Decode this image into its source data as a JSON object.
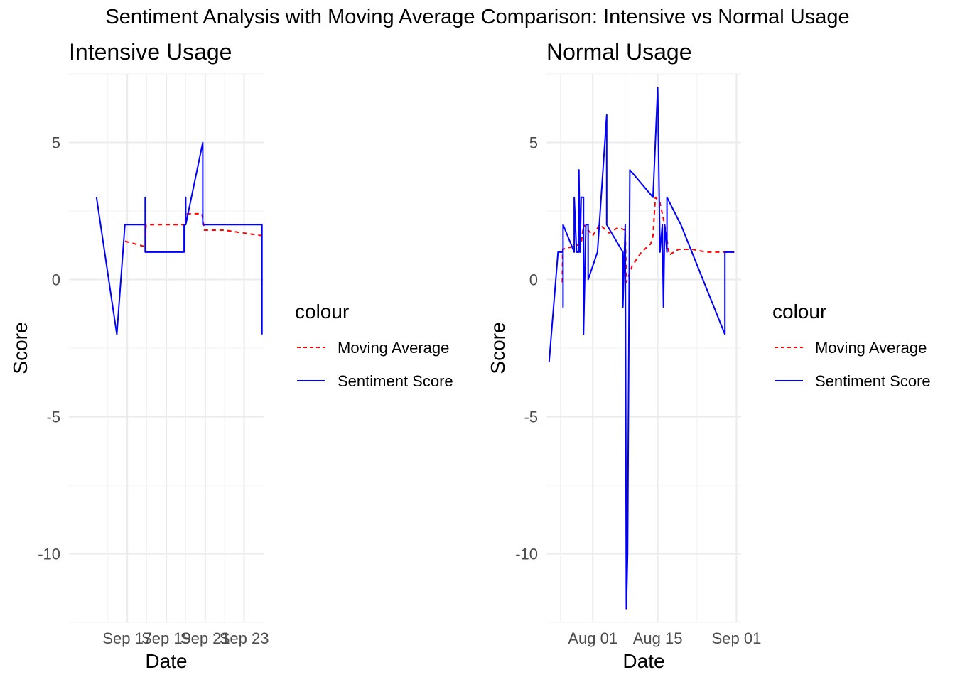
{
  "figure": {
    "title": "Sentiment Analysis with Moving Average Comparison: Intensive vs Normal Usage"
  },
  "chart_data": [
    {
      "type": "line",
      "title": "Intensive Usage",
      "xlabel": "Date",
      "ylabel": "Score",
      "x_type": "date",
      "xlim": [
        "2024-09-14",
        "2024-09-24"
      ],
      "ylim": [
        -12.5,
        7.5
      ],
      "x_ticks": [
        {
          "label": "Sep 17",
          "x": "2024-09-17"
        },
        {
          "label": "Sep 19",
          "x": "2024-09-19"
        },
        {
          "label": "Sep 21",
          "x": "2024-09-21"
        },
        {
          "label": "Sep 23",
          "x": "2024-09-23"
        }
      ],
      "y_ticks": [
        5,
        0,
        -5,
        -10
      ],
      "y_tick_labels": [
        "5",
        "0",
        "-5",
        "-10"
      ],
      "grid": true,
      "legend": {
        "title": "colour",
        "position": "right"
      },
      "series": [
        {
          "name": "Moving Average",
          "color": "#ff0000",
          "dash": "dashed",
          "points": [
            [
              "2024-09-16 21:00",
              1.4
            ],
            [
              "2024-09-17 22:00",
              1.2
            ],
            [
              "2024-09-17 23:00",
              2.0
            ],
            [
              "2024-09-19 23:00",
              2.0
            ],
            [
              "2024-09-20 00:00",
              2.4
            ],
            [
              "2024-09-20 20:00",
              2.4
            ],
            [
              "2024-09-20 23:00",
              1.8
            ],
            [
              "2024-09-21 23:00",
              1.8
            ],
            [
              "2024-09-23 22:00",
              1.6
            ]
          ]
        },
        {
          "name": "Sentiment Score",
          "color": "#0000ff",
          "dash": "solid",
          "points": [
            [
              "2024-09-15 10:00",
              3
            ],
            [
              "2024-09-16 11:00",
              -2
            ],
            [
              "2024-09-16 21:00",
              2
            ],
            [
              "2024-09-17 22:00",
              2
            ],
            [
              "2024-09-17 22:00",
              3
            ],
            [
              "2024-09-17 22:00",
              1
            ],
            [
              "2024-09-19 22:00",
              1
            ],
            [
              "2024-09-19 22:00",
              2
            ],
            [
              "2024-09-20 00:00",
              2
            ],
            [
              "2024-09-20 00:00",
              3
            ],
            [
              "2024-09-20 00:00",
              2
            ],
            [
              "2024-09-20 21:00",
              5
            ],
            [
              "2024-09-20 21:00",
              2
            ],
            [
              "2024-09-23 22:00",
              2
            ],
            [
              "2024-09-23 22:00",
              -2
            ]
          ]
        }
      ]
    },
    {
      "type": "line",
      "title": "Normal Usage",
      "xlabel": "Date",
      "ylabel": "Score",
      "x_type": "date",
      "xlim": [
        "2024-07-22",
        "2024-09-02"
      ],
      "ylim": [
        -12.5,
        7.5
      ],
      "x_ticks": [
        {
          "label": "Aug 01",
          "x": "2024-08-01"
        },
        {
          "label": "Aug 15",
          "x": "2024-08-15"
        },
        {
          "label": "Sep 01",
          "x": "2024-09-01"
        }
      ],
      "y_ticks": [
        5,
        0,
        -5,
        -10
      ],
      "y_tick_labels": [
        "5",
        "0",
        "-5",
        "-10"
      ],
      "grid": true,
      "legend": {
        "title": "colour",
        "position": "right"
      },
      "series": [
        {
          "name": "Moving Average",
          "color": "#ff0000",
          "dash": "dashed",
          "points": [
            [
              "2024-07-25 10:00",
              -0.1
            ],
            [
              "2024-07-25 12:00",
              1.1
            ],
            [
              "2024-07-27 12:00",
              1.2
            ],
            [
              "2024-07-29 12:00",
              1.3
            ],
            [
              "2024-07-30 00:00",
              2.0
            ],
            [
              "2024-07-30 12:00",
              1.9
            ],
            [
              "2024-08-01 00:00",
              1.6
            ],
            [
              "2024-08-02 12:00",
              2.0
            ],
            [
              "2024-08-04 12:00",
              1.7
            ],
            [
              "2024-08-06 12:00",
              1.9
            ],
            [
              "2024-08-08 00:00",
              1.8
            ],
            [
              "2024-08-08 06:00",
              -0.1
            ],
            [
              "2024-08-09 12:00",
              0.5
            ],
            [
              "2024-08-11 12:00",
              1.0
            ],
            [
              "2024-08-13 12:00",
              1.3
            ],
            [
              "2024-08-14 00:00",
              1.6
            ],
            [
              "2024-08-14 12:00",
              3.0
            ],
            [
              "2024-08-15 12:00",
              2.8
            ],
            [
              "2024-08-16 12:00",
              2.0
            ],
            [
              "2024-08-17 12:00",
              0.9
            ],
            [
              "2024-08-19 12:00",
              1.1
            ],
            [
              "2024-08-22 12:00",
              1.1
            ],
            [
              "2024-08-25 12:00",
              1.0
            ],
            [
              "2024-08-31 12:00",
              1.0
            ]
          ]
        },
        {
          "name": "Sentiment Score",
          "color": "#0000ff",
          "dash": "solid",
          "points": [
            [
              "2024-07-22 14:00",
              -3
            ],
            [
              "2024-07-24 12:00",
              1
            ],
            [
              "2024-07-25 14:00",
              1
            ],
            [
              "2024-07-25 14:00",
              -1
            ],
            [
              "2024-07-25 14:00",
              2
            ],
            [
              "2024-07-28 00:00",
              1
            ],
            [
              "2024-07-28 00:00",
              3
            ],
            [
              "2024-07-28 12:00",
              1
            ],
            [
              "2024-07-29 00:00",
              1
            ],
            [
              "2024-07-29 00:00",
              4
            ],
            [
              "2024-07-29 06:00",
              1
            ],
            [
              "2024-07-29 12:00",
              3
            ],
            [
              "2024-07-30 00:00",
              3
            ],
            [
              "2024-07-30 00:00",
              -2
            ],
            [
              "2024-07-30 12:00",
              2
            ],
            [
              "2024-07-31 00:00",
              2
            ],
            [
              "2024-07-31 00:00",
              0
            ],
            [
              "2024-08-02 00:00",
              1
            ],
            [
              "2024-08-04 00:00",
              6
            ],
            [
              "2024-08-04 00:00",
              2
            ],
            [
              "2024-08-07 12:00",
              1
            ],
            [
              "2024-08-07 12:00",
              -1
            ],
            [
              "2024-08-08 00:00",
              2
            ],
            [
              "2024-08-08 06:00",
              -12
            ],
            [
              "2024-08-08 12:00",
              -10
            ],
            [
              "2024-08-09 00:00",
              4
            ],
            [
              "2024-08-14 00:00",
              3
            ],
            [
              "2024-08-15 00:00",
              7
            ],
            [
              "2024-08-15 12:00",
              1
            ],
            [
              "2024-08-16 00:00",
              2
            ],
            [
              "2024-08-16 06:00",
              -1
            ],
            [
              "2024-08-16 12:00",
              2
            ],
            [
              "2024-08-17 00:00",
              1
            ],
            [
              "2024-08-17 00:00",
              3
            ],
            [
              "2024-08-20 00:00",
              2
            ],
            [
              "2024-08-29 12:00",
              -2
            ],
            [
              "2024-08-29 12:00",
              1
            ],
            [
              "2024-08-31 12:00",
              1
            ]
          ]
        }
      ]
    }
  ]
}
